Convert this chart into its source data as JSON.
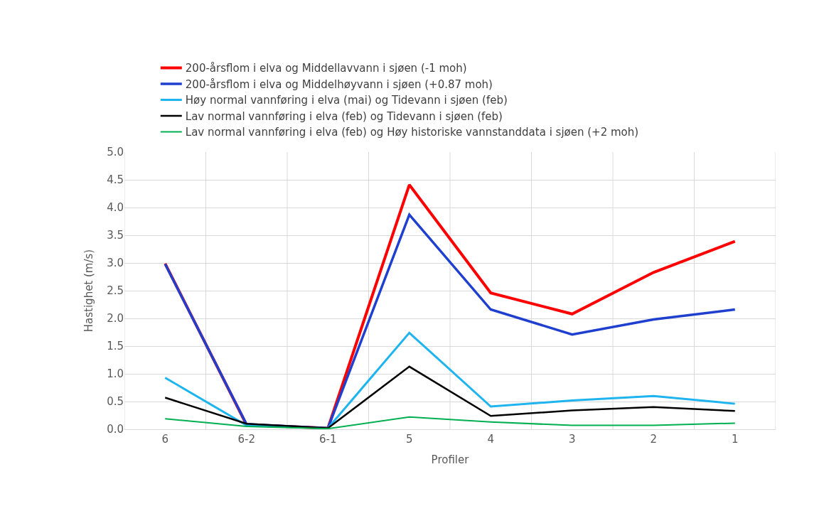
{
  "chart_data": {
    "type": "line",
    "xlabel": "Profiler",
    "ylabel": "Hastighet (m/s)",
    "categories": [
      "6",
      "6-2",
      "6-1",
      "5",
      "4",
      "3",
      "2",
      "1"
    ],
    "series": [
      {
        "name": "200-årsflom i elva og Middellavvann i sjøen (-1 moh)",
        "color": "#ff0000",
        "values": [
          2.99,
          0.08,
          0.02,
          4.41,
          2.46,
          2.08,
          2.83,
          3.39
        ]
      },
      {
        "name": "200-årsflom i elva og Middelhøyvann i sjøen (+0.87 moh)",
        "color": "#1f3fcf",
        "values": [
          2.98,
          0.09,
          0.02,
          3.87,
          2.16,
          1.71,
          1.98,
          2.16
        ]
      },
      {
        "name": "Høy normal vannføring i elva (mai) og Tidevann i sjøen (feb)",
        "color": "#1eb4f0",
        "values": [
          0.93,
          0.07,
          0.02,
          1.74,
          0.41,
          0.52,
          0.6,
          0.46
        ]
      },
      {
        "name": "Lav normal vannføring i elva (feb) og Tidevann i sjøen (feb)",
        "color": "#000000",
        "values": [
          0.57,
          0.1,
          0.02,
          1.13,
          0.24,
          0.34,
          0.4,
          0.33
        ]
      },
      {
        "name": "Lav normal vannføring i elva (feb) og Høy historiske vannstanddata i sjøen (+2 moh)",
        "color": "#00b050",
        "values": [
          0.19,
          0.05,
          0.01,
          0.22,
          0.13,
          0.07,
          0.07,
          0.11
        ]
      }
    ],
    "ylim": [
      0,
      5
    ],
    "yticks": [
      {
        "value": 0,
        "label": "0.0"
      },
      {
        "value": 0.5,
        "label": "0.5"
      },
      {
        "value": 1,
        "label": "1.0"
      },
      {
        "value": 1.5,
        "label": "1.5"
      },
      {
        "value": 2,
        "label": "2.0"
      },
      {
        "value": 2.5,
        "label": "2.5"
      },
      {
        "value": 3,
        "label": "3.0"
      },
      {
        "value": 3.5,
        "label": "3.5"
      },
      {
        "value": 4,
        "label": "4.0"
      },
      {
        "value": 4.5,
        "label": "4.5"
      },
      {
        "value": 5,
        "label": "5.0"
      }
    ],
    "grid": true,
    "legend": "top",
    "marker": "none",
    "line_style": "solid"
  }
}
